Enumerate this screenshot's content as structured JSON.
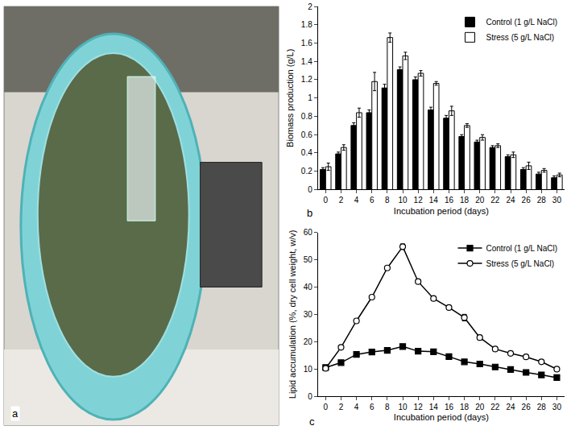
{
  "photo_panel": {
    "label": "a"
  },
  "chart_data": [
    {
      "type": "bar",
      "annotations": [
        "b"
      ],
      "x_label": "Incubation period (days)",
      "y_label": "Biomass production (g/L)",
      "categories": [
        "0",
        "2",
        "4",
        "6",
        "8",
        "10",
        "12",
        "14",
        "16",
        "18",
        "20",
        "22",
        "24",
        "26",
        "28",
        "30"
      ],
      "series": [
        {
          "name": "Control (1 g/L NaCl)",
          "color": "black",
          "values": [
            0.22,
            0.39,
            0.7,
            0.84,
            1.11,
            1.31,
            1.2,
            0.87,
            0.78,
            0.58,
            0.52,
            0.46,
            0.36,
            0.22,
            0.17,
            0.13
          ],
          "errors": [
            0.02,
            0.02,
            0.03,
            0.03,
            0.04,
            0.03,
            0.03,
            0.03,
            0.03,
            0.02,
            0.02,
            0.02,
            0.02,
            0.02,
            0.02,
            0.02
          ]
        },
        {
          "name": "Stress (5 g/L NaCl)",
          "color": "white",
          "values": [
            0.25,
            0.46,
            0.84,
            1.18,
            1.66,
            1.46,
            1.27,
            1.16,
            0.86,
            0.7,
            0.57,
            0.48,
            0.38,
            0.26,
            0.21,
            0.16
          ],
          "errors": [
            0.04,
            0.03,
            0.05,
            0.1,
            0.05,
            0.04,
            0.03,
            0.02,
            0.05,
            0.02,
            0.03,
            0.02,
            0.03,
            0.04,
            0.02,
            0.02
          ]
        }
      ],
      "ylim": [
        0,
        2
      ],
      "yticks": [
        0,
        0.2,
        0.4,
        0.6,
        0.8,
        1,
        1.2,
        1.4,
        1.6,
        1.8,
        2
      ],
      "grid": false,
      "legend": "upper right"
    },
    {
      "type": "line",
      "annotations": [
        "c"
      ],
      "x_label": "Incubation period (days)",
      "y_label": "Lipid accumulation (%, dry cell weight, w/v)",
      "x": [
        0,
        2,
        4,
        6,
        8,
        10,
        12,
        14,
        16,
        18,
        20,
        22,
        24,
        26,
        28,
        30
      ],
      "series": [
        {
          "name": "Control (1 g/L NaCl)",
          "color": "black",
          "marker": "square",
          "values": [
            10.5,
            12.3,
            15.3,
            16.2,
            16.8,
            18.2,
            16.5,
            16.3,
            14.5,
            12.6,
            11.8,
            10.7,
            9.8,
            8.7,
            7.8,
            6.8
          ],
          "errors": [
            0.4,
            0.4,
            0.4,
            0.4,
            0.4,
            0.5,
            0.4,
            0.4,
            0.4,
            0.4,
            0.3,
            0.3,
            0.3,
            0.3,
            0.3,
            0.3
          ]
        },
        {
          "name": "Stress (5 g/L NaCl)",
          "color": "black",
          "marker": "open circle",
          "values": [
            10.2,
            17.9,
            27.6,
            36.3,
            47.0,
            54.8,
            42.0,
            35.8,
            32.5,
            28.8,
            21.5,
            17.3,
            15.7,
            14.4,
            12.6,
            9.9
          ],
          "errors": [
            0.5,
            0.5,
            0.5,
            0.5,
            0.5,
            1.0,
            0.5,
            0.6,
            0.5,
            1.2,
            0.8,
            0.5,
            0.4,
            0.4,
            0.4,
            0.4
          ]
        }
      ],
      "xlim": [
        -1,
        31
      ],
      "xticks": [
        0,
        2,
        4,
        6,
        8,
        10,
        12,
        14,
        16,
        18,
        20,
        22,
        24,
        26,
        28,
        30
      ],
      "ylim": [
        0,
        60
      ],
      "yticks": [
        0,
        10,
        20,
        30,
        40,
        50,
        60
      ],
      "grid": false,
      "legend": "upper right"
    }
  ]
}
